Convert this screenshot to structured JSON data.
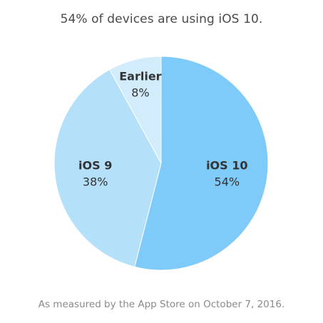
{
  "chart_data": {
    "type": "pie",
    "title": "54% of devices are using iOS 10.",
    "slices": [
      {
        "label": "iOS 10",
        "value": 54,
        "value_label": "54%",
        "color": "#7ecaf8"
      },
      {
        "label": "iOS 9",
        "value": 38,
        "value_label": "38%",
        "color": "#b5e0fa"
      },
      {
        "label": "Earlier",
        "value": 8,
        "value_label": "8%",
        "color": "#d2ecfc"
      }
    ],
    "start": "12 o'clock",
    "direction": "clockwise",
    "legend": "none",
    "footnote": "As measured by the App Store on October 7, 2016."
  }
}
